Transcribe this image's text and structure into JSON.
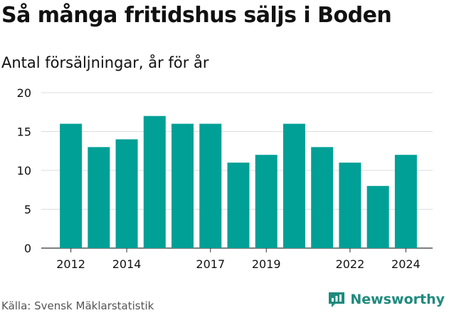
{
  "header": {
    "title": "Så många fritidshus säljs i Boden",
    "subtitle": "Antal försäljningar, år för år"
  },
  "footer": {
    "source": "Källa: Svensk Mäklarstatistik",
    "brand": "Newsworthy",
    "brand_icon": "newsworthy-logo-icon"
  },
  "colors": {
    "bar": "#00a096",
    "grid": "#dddddd",
    "axis": "#333333",
    "brand": "#1f8a7d"
  },
  "chart_data": {
    "type": "bar",
    "title": "Så många fritidshus säljs i Boden",
    "subtitle": "Antal försäljningar, år för år",
    "categories": [
      "2012",
      "2013",
      "2014",
      "2015",
      "2016",
      "2017",
      "2018",
      "2019",
      "2020",
      "2021",
      "2022",
      "2023",
      "2024"
    ],
    "values": [
      16,
      13,
      14,
      17,
      16,
      16,
      11,
      12,
      16,
      13,
      11,
      8,
      12
    ],
    "x_tick_labels": [
      "2012",
      "2014",
      "2017",
      "2019",
      "2022",
      "2024"
    ],
    "y_ticks": [
      0,
      5,
      10,
      15,
      20
    ],
    "ylim": [
      0,
      20
    ],
    "xlabel": "",
    "ylabel": "",
    "grid": true,
    "legend": "none"
  }
}
